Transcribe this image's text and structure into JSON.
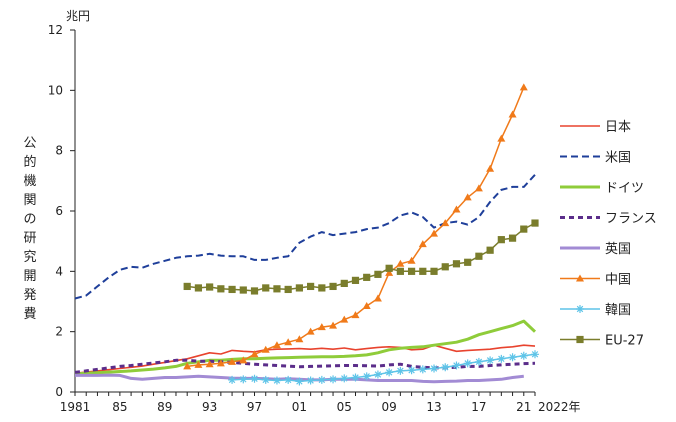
{
  "chart_data": {
    "type": "line",
    "unit_label": "兆円",
    "ylabel": "公的機関の研究開発費",
    "xlabel_suffix": "2022年",
    "ylim": [
      0,
      12
    ],
    "xlim": [
      1981,
      2022
    ],
    "y_ticks": [
      0,
      2,
      4,
      6,
      8,
      10,
      12
    ],
    "x_ticks": [
      {
        "year": 1981,
        "label": "1981"
      },
      {
        "year": 1985,
        "label": "85"
      },
      {
        "year": 1989,
        "label": "89"
      },
      {
        "year": 1993,
        "label": "93"
      },
      {
        "year": 1997,
        "label": "97"
      },
      {
        "year": 2001,
        "label": "01"
      },
      {
        "year": 2005,
        "label": "05"
      },
      {
        "year": 2009,
        "label": "09"
      },
      {
        "year": 2013,
        "label": "13"
      },
      {
        "year": 2017,
        "label": "17"
      },
      {
        "year": 2021,
        "label": "21"
      }
    ],
    "legend_position": "right",
    "series": [
      {
        "name": "日本",
        "color": "#e8432e",
        "style": "solid",
        "width": 1.6,
        "marker": "none",
        "x": [
          1981,
          1982,
          1983,
          1984,
          1985,
          1986,
          1987,
          1988,
          1989,
          1990,
          1991,
          1992,
          1993,
          1994,
          1995,
          1996,
          1997,
          1998,
          1999,
          2000,
          2001,
          2002,
          2003,
          2004,
          2005,
          2006,
          2007,
          2008,
          2009,
          2010,
          2011,
          2012,
          2013,
          2014,
          2015,
          2016,
          2017,
          2018,
          2019,
          2020,
          2021,
          2022
        ],
        "values": [
          0.62,
          0.66,
          0.7,
          0.74,
          0.78,
          0.82,
          0.86,
          0.92,
          0.98,
          1.04,
          1.1,
          1.2,
          1.3,
          1.26,
          1.38,
          1.35,
          1.33,
          1.4,
          1.42,
          1.43,
          1.44,
          1.42,
          1.45,
          1.42,
          1.46,
          1.4,
          1.44,
          1.48,
          1.5,
          1.48,
          1.4,
          1.42,
          1.55,
          1.45,
          1.35,
          1.38,
          1.4,
          1.42,
          1.47,
          1.5,
          1.55,
          1.52
        ]
      },
      {
        "name": "米国",
        "color": "#1f3f9a",
        "style": "dashed",
        "width": 2,
        "marker": "none",
        "x": [
          1981,
          1982,
          1983,
          1984,
          1985,
          1986,
          1987,
          1988,
          1989,
          1990,
          1991,
          1992,
          1993,
          1994,
          1995,
          1996,
          1997,
          1998,
          1999,
          2000,
          2001,
          2002,
          2003,
          2004,
          2005,
          2006,
          2007,
          2008,
          2009,
          2010,
          2011,
          2012,
          2013,
          2014,
          2015,
          2016,
          2017,
          2018,
          2019,
          2020,
          2021,
          2022
        ],
        "values": [
          3.1,
          3.2,
          3.5,
          3.8,
          4.05,
          4.15,
          4.12,
          4.25,
          4.35,
          4.45,
          4.5,
          4.52,
          4.58,
          4.52,
          4.5,
          4.5,
          4.38,
          4.38,
          4.45,
          4.5,
          4.95,
          5.15,
          5.3,
          5.2,
          5.25,
          5.3,
          5.4,
          5.45,
          5.6,
          5.85,
          5.95,
          5.8,
          5.45,
          5.6,
          5.65,
          5.55,
          5.8,
          6.3,
          6.7,
          6.8,
          6.8,
          7.2
        ]
      },
      {
        "name": "ドイツ",
        "color": "#8fcc3a",
        "style": "solid",
        "width": 3,
        "marker": "none",
        "x": [
          1981,
          1982,
          1983,
          1984,
          1985,
          1986,
          1987,
          1988,
          1989,
          1990,
          1991,
          1992,
          1993,
          1994,
          1995,
          1996,
          1997,
          1998,
          1999,
          2000,
          2001,
          2002,
          2003,
          2004,
          2005,
          2006,
          2007,
          2008,
          2009,
          2010,
          2011,
          2012,
          2013,
          2014,
          2015,
          2016,
          2017,
          2018,
          2019,
          2020,
          2021,
          2022
        ],
        "values": [
          0.6,
          0.62,
          0.64,
          0.66,
          0.68,
          0.7,
          0.73,
          0.76,
          0.8,
          0.85,
          0.95,
          1.0,
          1.05,
          1.05,
          1.08,
          1.1,
          1.1,
          1.12,
          1.13,
          1.14,
          1.15,
          1.16,
          1.17,
          1.17,
          1.18,
          1.2,
          1.23,
          1.3,
          1.4,
          1.45,
          1.48,
          1.5,
          1.55,
          1.6,
          1.65,
          1.75,
          1.9,
          2.0,
          2.1,
          2.2,
          2.35,
          2.0
        ]
      },
      {
        "name": "フランス",
        "color": "#5b2d8a",
        "style": "dashed",
        "width": 3,
        "marker": "none",
        "x": [
          1981,
          1982,
          1983,
          1984,
          1985,
          1986,
          1987,
          1988,
          1989,
          1990,
          1991,
          1992,
          1993,
          1994,
          1995,
          1996,
          1997,
          1998,
          1999,
          2000,
          2001,
          2002,
          2003,
          2004,
          2005,
          2006,
          2007,
          2008,
          2009,
          2010,
          2011,
          2012,
          2013,
          2014,
          2015,
          2016,
          2017,
          2018,
          2019,
          2020,
          2021,
          2022
        ],
        "values": [
          0.65,
          0.7,
          0.75,
          0.8,
          0.85,
          0.88,
          0.92,
          0.96,
          1.0,
          1.05,
          1.05,
          1.02,
          1.02,
          1.0,
          0.98,
          0.95,
          0.92,
          0.9,
          0.88,
          0.86,
          0.84,
          0.85,
          0.86,
          0.87,
          0.88,
          0.88,
          0.87,
          0.86,
          0.9,
          0.92,
          0.85,
          0.82,
          0.8,
          0.8,
          0.82,
          0.85,
          0.85,
          0.88,
          0.9,
          0.92,
          0.94,
          0.95
        ]
      },
      {
        "name": "英国",
        "color": "#a28bd4",
        "style": "solid",
        "width": 3,
        "marker": "none",
        "x": [
          1981,
          1982,
          1983,
          1984,
          1985,
          1986,
          1987,
          1988,
          1989,
          1990,
          1991,
          1992,
          1993,
          1994,
          1995,
          1996,
          1997,
          1998,
          1999,
          2000,
          2001,
          2002,
          2003,
          2004,
          2005,
          2006,
          2007,
          2008,
          2009,
          2010,
          2011,
          2012,
          2013,
          2014,
          2015,
          2016,
          2017,
          2018,
          2019,
          2020,
          2021
        ],
        "values": [
          0.55,
          0.55,
          0.55,
          0.56,
          0.55,
          0.45,
          0.42,
          0.45,
          0.48,
          0.48,
          0.5,
          0.52,
          0.5,
          0.48,
          0.46,
          0.45,
          0.45,
          0.44,
          0.42,
          0.44,
          0.42,
          0.4,
          0.4,
          0.42,
          0.42,
          0.42,
          0.4,
          0.38,
          0.38,
          0.38,
          0.38,
          0.35,
          0.34,
          0.35,
          0.36,
          0.38,
          0.38,
          0.4,
          0.42,
          0.48,
          0.52
        ]
      },
      {
        "name": "中国",
        "color": "#f07a1a",
        "style": "solid",
        "width": 1.5,
        "marker": "triangle",
        "x": [
          1991,
          1992,
          1993,
          1994,
          1995,
          1996,
          1997,
          1998,
          1999,
          2000,
          2001,
          2002,
          2003,
          2004,
          2005,
          2006,
          2007,
          2008,
          2009,
          2010,
          2011,
          2012,
          2013,
          2014,
          2015,
          2016,
          2017,
          2018,
          2019,
          2020,
          2021
        ],
        "values": [
          0.85,
          0.9,
          0.92,
          0.95,
          1.0,
          1.05,
          1.25,
          1.4,
          1.55,
          1.65,
          1.75,
          2.0,
          2.15,
          2.2,
          2.4,
          2.55,
          2.85,
          3.1,
          3.95,
          4.25,
          4.35,
          4.9,
          5.25,
          5.6,
          6.05,
          6.45,
          6.75,
          7.4,
          8.4,
          9.2,
          10.1
        ]
      },
      {
        "name": "韓国",
        "color": "#5ec4e8",
        "style": "solid",
        "width": 1.5,
        "marker": "star",
        "x": [
          1995,
          1996,
          1997,
          1998,
          1999,
          2000,
          2001,
          2002,
          2003,
          2004,
          2005,
          2006,
          2007,
          2008,
          2009,
          2010,
          2011,
          2012,
          2013,
          2014,
          2015,
          2016,
          2017,
          2018,
          2019,
          2020,
          2021,
          2022
        ],
        "values": [
          0.4,
          0.42,
          0.44,
          0.4,
          0.38,
          0.4,
          0.35,
          0.38,
          0.4,
          0.42,
          0.45,
          0.48,
          0.52,
          0.58,
          0.65,
          0.7,
          0.72,
          0.75,
          0.78,
          0.82,
          0.88,
          0.95,
          1.0,
          1.05,
          1.1,
          1.15,
          1.2,
          1.25
        ]
      },
      {
        "name": "EU-27",
        "color": "#7a7d2c",
        "style": "solid",
        "width": 1.5,
        "marker": "square",
        "x": [
          1991,
          1992,
          1993,
          1994,
          1995,
          1996,
          1997,
          1998,
          1999,
          2000,
          2001,
          2002,
          2003,
          2004,
          2005,
          2006,
          2007,
          2008,
          2009,
          2010,
          2011,
          2012,
          2013,
          2014,
          2015,
          2016,
          2017,
          2018,
          2019,
          2020,
          2021,
          2022
        ],
        "values": [
          3.5,
          3.45,
          3.48,
          3.42,
          3.4,
          3.38,
          3.35,
          3.45,
          3.42,
          3.4,
          3.45,
          3.5,
          3.45,
          3.5,
          3.6,
          3.7,
          3.8,
          3.9,
          4.1,
          4.0,
          4.0,
          4.0,
          4.0,
          4.15,
          4.25,
          4.3,
          4.5,
          4.7,
          5.05,
          5.1,
          5.4,
          5.6
        ]
      }
    ]
  }
}
